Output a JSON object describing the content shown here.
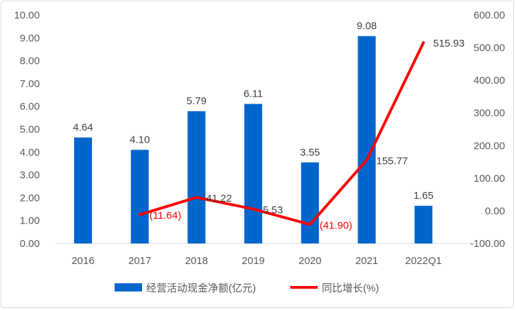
{
  "chart_data": {
    "type": "bar+line",
    "categories": [
      "2016",
      "2017",
      "2018",
      "2019",
      "2020",
      "2021",
      "2022Q1"
    ],
    "series": [
      {
        "name": "经营活动现金净额(亿元)",
        "type": "bar",
        "axis": "left",
        "color": "#0066cc",
        "values": [
          4.64,
          4.1,
          5.79,
          6.11,
          3.55,
          9.08,
          1.65
        ],
        "labels": [
          "4.64",
          "4.10",
          "5.79",
          "6.11",
          "3.55",
          "9.08",
          "1.65"
        ]
      },
      {
        "name": "同比增长(%)",
        "type": "line",
        "axis": "right",
        "color": "#ff0000",
        "values": [
          null,
          -11.64,
          41.22,
          5.53,
          -41.9,
          155.77,
          515.93
        ],
        "labels": [
          null,
          "(11.64)",
          "41.22",
          "5.53",
          "(41.90)",
          "155.77",
          "515.93"
        ]
      }
    ],
    "y_left": {
      "lim": [
        0,
        10
      ],
      "ticks": [
        "0.00",
        "1.00",
        "2.00",
        "3.00",
        "4.00",
        "5.00",
        "6.00",
        "7.00",
        "8.00",
        "9.00",
        "10.00"
      ]
    },
    "y_right": {
      "lim": [
        -100,
        600
      ],
      "ticks": [
        "-100.00",
        "0.00",
        "100.00",
        "200.00",
        "300.00",
        "400.00",
        "500.00",
        "600.00"
      ]
    },
    "grid": false,
    "legend": "bottom",
    "negative_label_color": "#ff0000",
    "positive_label_color": "#404040"
  }
}
